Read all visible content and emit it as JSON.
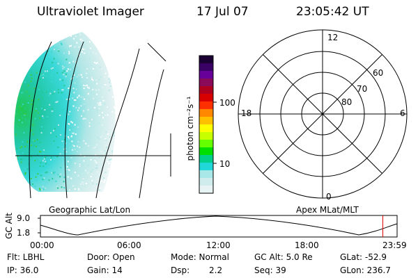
{
  "header": {
    "instrument": "Ultraviolet Imager",
    "date": "17 Jul 07",
    "time": "23:05:42 UT"
  },
  "colorbar": {
    "unit_label": "photon cm⁻²s⁻¹",
    "tick_100": "100",
    "tick_10": "10",
    "colors": [
      "#1a0033",
      "#3a0066",
      "#660099",
      "#8a0a5a",
      "#b00020",
      "#d80000",
      "#ff3000",
      "#ff8800",
      "#ffc000",
      "#ffff00",
      "#c8ff00",
      "#66ff00",
      "#00e000",
      "#00d08a",
      "#20d8d8",
      "#a8e8e8",
      "#d0ecec",
      "#e8f4f4"
    ]
  },
  "left_panel": {
    "caption": "Geographic Lat/Lon"
  },
  "polar_plot": {
    "caption": "Apex MLat/MLT",
    "mlt_labels": {
      "top": "12",
      "left": "18",
      "right": "6",
      "bottom": "0"
    },
    "lat_labels": [
      "60",
      "70",
      "80"
    ]
  },
  "altitude_strip": {
    "axis_label": "GC Alt",
    "y_max": "9.0",
    "y_min": "1.8",
    "time_ticks": [
      "00:00",
      "06:00",
      "12:00",
      "18:00",
      "23:59"
    ],
    "current_time_fraction": 0.96
  },
  "info": {
    "filter": "Flt: LBHL",
    "ip": "IP: 36.0",
    "door": "Door: Open",
    "gain": "Gain: 14",
    "mode": "Mode: Normal",
    "dsp_label": "Dsp:",
    "dsp_value": "2.2",
    "gc_alt": "GC Alt: 5.0 Re",
    "seq": "Seq: 39",
    "glat": "GLat: -52.9",
    "glon": "GLon: 236.7"
  }
}
